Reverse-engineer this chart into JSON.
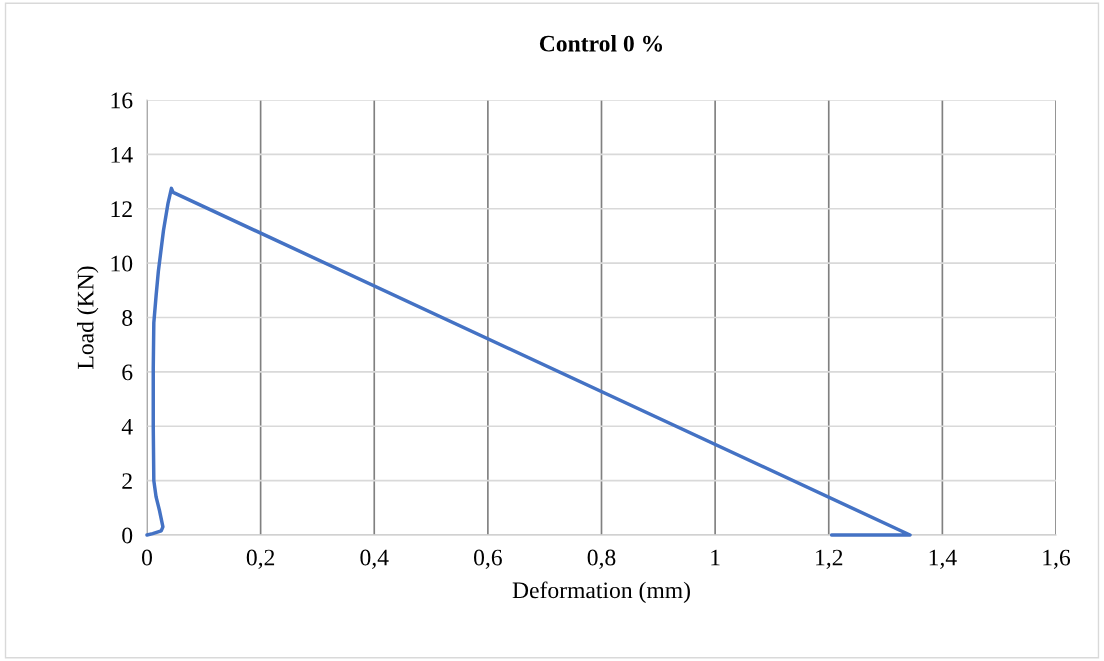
{
  "chart_data": {
    "type": "line",
    "title": "Control 0 %",
    "xlabel": "Deformation (mm)",
    "ylabel": "Load (KN)",
    "series": [
      {
        "color": "#4472c4",
        "x": [
          0,
          0.01,
          0.025,
          0.028,
          0.022,
          0.016,
          0.012,
          0.011,
          0.011,
          0.012,
          0.016,
          0.02,
          0.029,
          0.037,
          0.043,
          0.046,
          1.343,
          1.205
        ],
        "values": [
          0,
          0.05,
          0.15,
          0.3,
          0.9,
          1.4,
          2.0,
          4.0,
          6.1,
          7.8,
          8.8,
          9.7,
          11.2,
          12.2,
          12.75,
          12.6,
          0,
          0
        ]
      }
    ],
    "xlim": [
      0,
      1.6
    ],
    "xticks": [
      0,
      {
        "value": 0.2,
        "label": "0,2"
      },
      {
        "value": 0.4,
        "label": "0,4"
      },
      {
        "value": 0.6,
        "label": "0,6"
      },
      {
        "value": 0.8,
        "label": "0,8"
      },
      1,
      {
        "value": 1.2,
        "label": "1,2"
      },
      {
        "value": 1.4,
        "label": "1,4"
      },
      {
        "value": 1.6,
        "label": "1,6"
      }
    ],
    "ylim": [
      0,
      16
    ],
    "yticks": [
      0,
      2,
      4,
      6,
      8,
      10,
      12,
      14,
      16
    ],
    "grid": true,
    "legend": false,
    "marker": "none",
    "line_style": "solid"
  }
}
